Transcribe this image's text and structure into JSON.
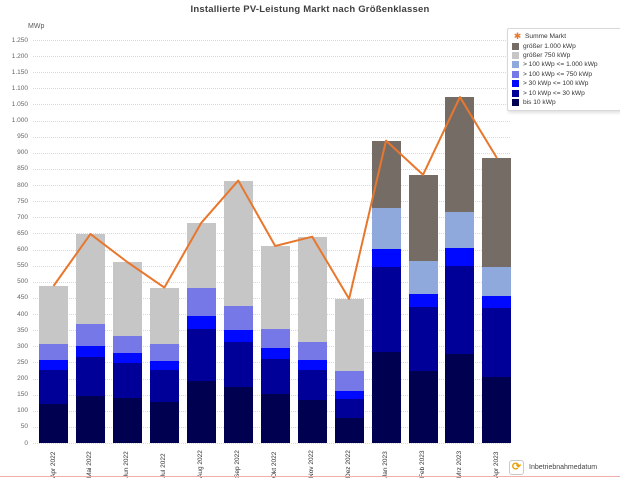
{
  "title": "Installierte PV-Leistung Markt nach Größenklassen",
  "y_axis_unit": "MWp",
  "footer": {
    "icon": "refresh-clock-icon",
    "icon_glyph": "⟳",
    "label": "Inbetriebnahmedatum"
  },
  "colors": {
    "line": "#e8772e",
    "grid": "#d9d9d9",
    "title_text": "#404040",
    "axis_text": "#666666",
    "bottom_rule": "#f2aeac"
  },
  "chart_data": {
    "type": "bar",
    "subtype": "stacked-bars-with-total-line",
    "title": "Installierte PV-Leistung Markt nach Größenklassen",
    "ylabel": "MWp",
    "xlabel": "Inbetriebnahmedatum",
    "ylim": [
      0,
      1250
    ],
    "ytick_step": 50,
    "grid": "horizontal-dotted",
    "legend_position": "top-right",
    "categories": [
      "Apr 2022",
      "Mai 2022",
      "Jun 2022",
      "Jul 2022",
      "Aug 2022",
      "Sep 2022",
      "Okt 2022",
      "Nov 2022",
      "Dez 2022",
      "Jan 2023",
      "Feb 2023",
      "Mrz 2023",
      "Apr 2023"
    ],
    "series": [
      {
        "name": "bis 10 kWp",
        "color": "#000050",
        "values": [
          122,
          146,
          140,
          126,
          193,
          174,
          151,
          133,
          78,
          283,
          223,
          275,
          205
        ]
      },
      {
        "name": "> 10 kWp <= 30 kWp",
        "color": "#000099",
        "values": [
          103,
          121,
          109,
          100,
          160,
          140,
          111,
          93,
          58,
          264,
          200,
          274,
          213
        ]
      },
      {
        "name": "> 30 kWp <= 100 kWp",
        "color": "#0009ff",
        "values": [
          32,
          35,
          29,
          27,
          40,
          36,
          33,
          31,
          25,
          54,
          38,
          57,
          38
        ]
      },
      {
        "name": "> 100 kWp <= 750 kWp",
        "color": "#7678e8",
        "values": [
          51,
          67,
          54,
          55,
          88,
          76,
          60,
          57,
          62,
          0,
          0,
          0,
          0
        ]
      },
      {
        "name": "> 100 kWp <= 1.000 kWp",
        "color": "#8fa9dc",
        "values": [
          0,
          0,
          0,
          0,
          0,
          0,
          0,
          0,
          0,
          128,
          104,
          112,
          89
        ]
      },
      {
        "name": "größer 750 kWp",
        "color": "#c6c6c6",
        "values": [
          179,
          279,
          229,
          174,
          202,
          388,
          256,
          326,
          224,
          0,
          0,
          0,
          0
        ]
      },
      {
        "name": "größer 1.000 kWp",
        "color": "#756c66",
        "values": [
          0,
          0,
          0,
          0,
          0,
          0,
          0,
          0,
          0,
          209,
          267,
          355,
          339
        ]
      }
    ],
    "line_series": {
      "name": "Summe Markt",
      "color": "#e8772e",
      "values": [
        487,
        648,
        561,
        482,
        683,
        814,
        611,
        640,
        447,
        938,
        832,
        1073,
        884
      ]
    },
    "legend": [
      {
        "label": "Summe Markt",
        "marker": "star",
        "color": "#e8772e"
      },
      {
        "label": "größer 1.000 kWp",
        "marker": "square",
        "color": "#756c66"
      },
      {
        "label": "größer 750 kWp",
        "marker": "square",
        "color": "#c6c6c6"
      },
      {
        "label": "> 100 kWp <= 1.000 kWp",
        "marker": "square",
        "color": "#8fa9dc"
      },
      {
        "label": "> 100 kWp <= 750 kWp",
        "marker": "square",
        "color": "#7678e8"
      },
      {
        "label": "> 30 kWp <= 100 kWp",
        "marker": "square",
        "color": "#0009ff"
      },
      {
        "label": "> 10 kWp <= 30 kWp",
        "marker": "square",
        "color": "#000099"
      },
      {
        "label": "bis 10 kWp",
        "marker": "square",
        "color": "#000050"
      }
    ]
  }
}
